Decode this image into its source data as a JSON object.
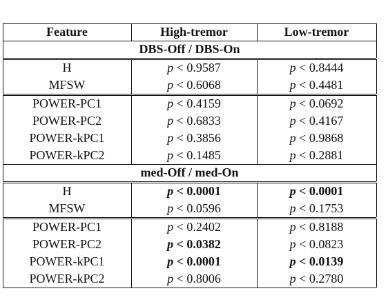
{
  "table": {
    "header": [
      "Feature",
      "High-tremor",
      "Low-tremor"
    ],
    "sections": [
      {
        "title": "DBS-Off / DBS-On",
        "groups": [
          [
            {
              "cells": [
                "H",
                "p < 0.9587",
                "p < 0.8444"
              ],
              "bold": [
                false,
                false,
                false
              ]
            },
            {
              "cells": [
                "MFSW",
                "p < 0.6068",
                "p < 0.4481"
              ],
              "bold": [
                false,
                false,
                false
              ]
            }
          ],
          [
            {
              "cells": [
                "POWER-PC1",
                "p < 0.4159",
                "p < 0.0692"
              ],
              "bold": [
                false,
                false,
                false
              ]
            },
            {
              "cells": [
                "POWER-PC2",
                "p < 0.6833",
                "p < 0.4167"
              ],
              "bold": [
                false,
                false,
                false
              ]
            },
            {
              "cells": [
                "POWER-kPC1",
                "p < 0.3856",
                "p < 0.9868"
              ],
              "bold": [
                false,
                false,
                false
              ]
            },
            {
              "cells": [
                "POWER-kPC2",
                "p < 0.1485",
                "p < 0.2881"
              ],
              "bold": [
                false,
                false,
                false
              ]
            }
          ]
        ]
      },
      {
        "title": "med-Off / med-On",
        "groups": [
          [
            {
              "cells": [
                "H",
                "p < 0.0001",
                "p < 0.0001"
              ],
              "bold": [
                false,
                true,
                true
              ]
            },
            {
              "cells": [
                "MFSW",
                "p < 0.0596",
                "p < 0.1753"
              ],
              "bold": [
                false,
                false,
                false
              ]
            }
          ],
          [
            {
              "cells": [
                "POWER-PC1",
                "p < 0.2402",
                "p < 0.8188"
              ],
              "bold": [
                false,
                false,
                false
              ]
            },
            {
              "cells": [
                "POWER-PC2",
                "p < 0.0382",
                "p < 0.0823"
              ],
              "bold": [
                false,
                true,
                false
              ]
            },
            {
              "cells": [
                "POWER-kPC1",
                "p < 0.0001",
                "p < 0.0139"
              ],
              "bold": [
                false,
                true,
                true
              ]
            },
            {
              "cells": [
                "POWER-kPC2",
                "p < 0.8006",
                "p < 0.2780"
              ],
              "bold": [
                false,
                false,
                false
              ]
            }
          ]
        ]
      }
    ]
  }
}
